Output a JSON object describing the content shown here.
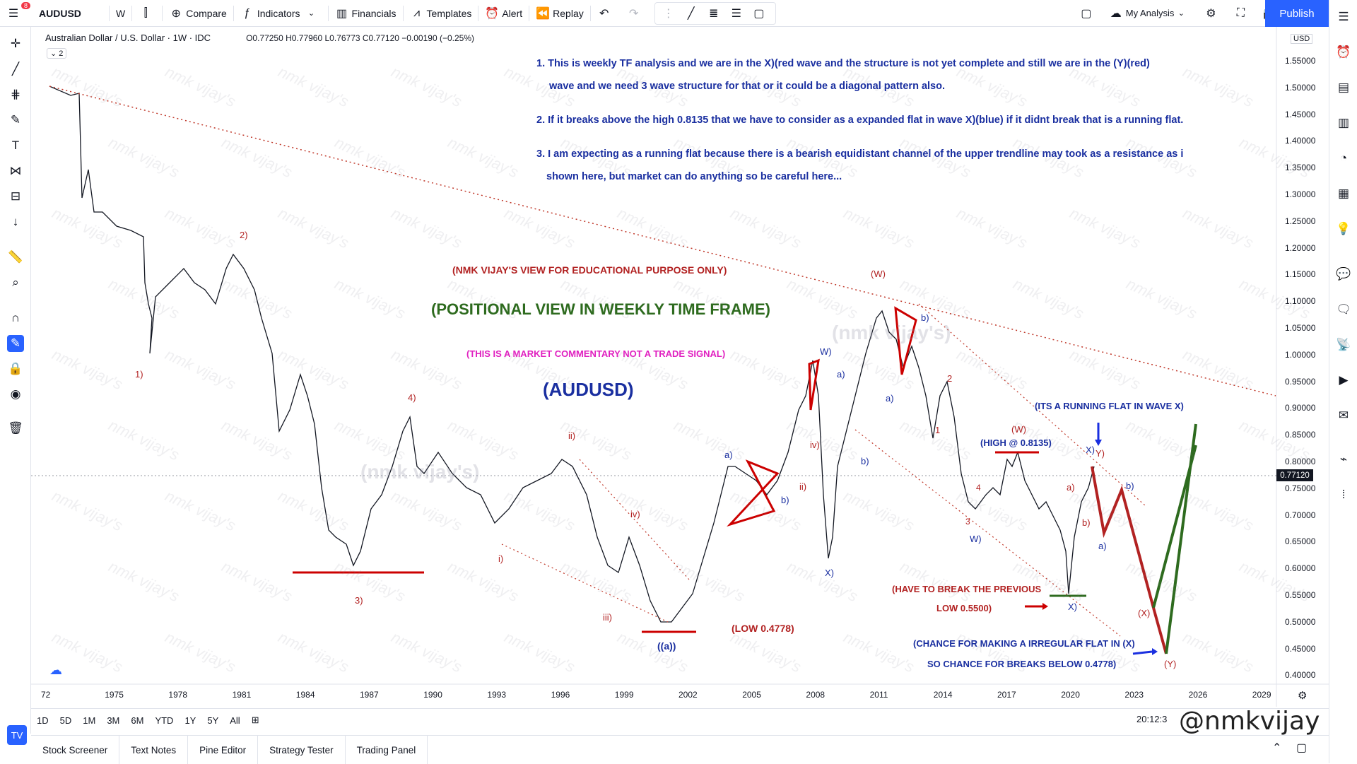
{
  "topbar": {
    "notification_count": "8",
    "symbol": "AUDUSD",
    "interval": "W",
    "compare_label": "Compare",
    "indicators_label": "Indicators",
    "financials_label": "Financials",
    "templates_label": "Templates",
    "alert_label": "Alert",
    "replay_label": "Replay",
    "layout_label": "My Analysis",
    "publish_label": "Publish"
  },
  "legend": {
    "title": "Australian Dollar / U.S. Dollar · 1W · IDC",
    "ohlc": "O0.77250 H0.77960 L0.76773 C0.77120 −0.00190 (−0.25%)",
    "indicator_count": "2"
  },
  "price_axis": {
    "currency": "USD",
    "labels": [
      "1.55000",
      "1.50000",
      "1.45000",
      "1.40000",
      "1.35000",
      "1.30000",
      "1.25000",
      "1.20000",
      "1.15000",
      "1.10000",
      "1.05000",
      "1.00000",
      "0.95000",
      "0.90000",
      "0.85000",
      "0.80000",
      "0.75000",
      "0.70000",
      "0.65000",
      "0.60000",
      "0.55000",
      "0.50000",
      "0.45000",
      "0.40000"
    ],
    "last_price": "0.77120"
  },
  "time_axis": {
    "labels": [
      "72",
      "1975",
      "1978",
      "1981",
      "1984",
      "1987",
      "1990",
      "1993",
      "1996",
      "1999",
      "2002",
      "2005",
      "2008",
      "2011",
      "2014",
      "2017",
      "2020",
      "2023",
      "2026",
      "2029"
    ]
  },
  "notes": {
    "n1a": "1. This is weekly TF analysis and we are in the X)(red wave and the structure is not yet complete and still we are in the (Y)(red)",
    "n1b": "wave and we need 3 wave structure for that or it could be a diagonal  pattern also.",
    "n2": "2. If it breaks above the high 0.8135 that we have to consider as a expanded flat in wave X)(blue) if it didnt break that is a running flat.",
    "n3a": "3. I am expecting as a running flat because there is a  bearish equidistant channel of the upper trendline may took as a resistance as i",
    "n3b": "shown here, but market can do anything so be careful here..."
  },
  "headings": {
    "disclaimer": "(NMK VIJAY'S VIEW FOR EDUCATIONAL PURPOSE ONLY)",
    "positional": "(POSITIONAL VIEW IN WEEKLY TIME FRAME)",
    "commentary": "(THIS IS A MARKET COMMENTARY NOT A TRADE SIGNAL)",
    "symbol": "(AUDUSD)",
    "running_flat": "(ITS A RUNNING FLAT IN WAVE X)",
    "high_label": "(HIGH @ 0.8135)",
    "low_label": "(LOW 0.4778)",
    "break_prev_1": "(HAVE TO BREAK THE PREVIOUS",
    "break_prev_2": "LOW 0.5500)",
    "irregular_1": "(CHANCE FOR MAKING A IRREGULAR FLAT IN (X)",
    "irregular_2": "SO CHANCE FOR BREAKS BELOW 0.4778)"
  },
  "wave_labels": {
    "w1": "1)",
    "w2": "2)",
    "w3": "3)",
    "w4": "4)",
    "i": "i)",
    "ii": "ii)",
    "iii": "iii)",
    "iv": "iv)",
    "aa": "((a))",
    "W_red": "(W)",
    "X_red": "(X)",
    "Y_red": "(Y)",
    "W_blue": "W)",
    "X_blue": "X)",
    "Y_blue": "Y)",
    "a": "a)",
    "b": "b)",
    "one": "1",
    "two": "2",
    "three": "3",
    "four": "4"
  },
  "watermark": "nmk vijay's",
  "watermark_big": "(nmk vijay's)",
  "bottom": {
    "ranges": [
      "1D",
      "5D",
      "1M",
      "3M",
      "6M",
      "YTD",
      "1Y",
      "5Y",
      "All"
    ],
    "clock": "20:12:3"
  },
  "footer": {
    "tabs": [
      "Stock Screener",
      "Text Notes",
      "Pine Editor",
      "Strategy Tester",
      "Trading Panel"
    ],
    "brand": "@nmkvijay"
  },
  "colors": {
    "accent": "#2962ff",
    "note_blue": "#1a2fa0",
    "wave_red": "#b22222",
    "positional_green": "#2e6b1f",
    "magenta": "#e020c0"
  }
}
